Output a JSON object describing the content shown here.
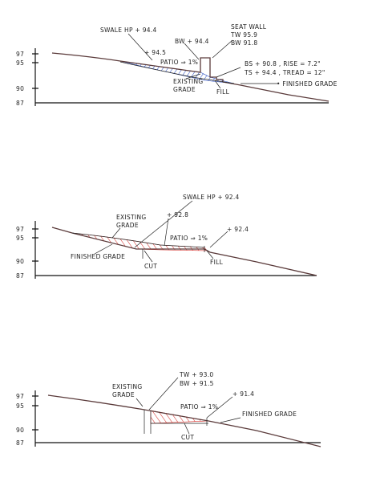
{
  "sections": [
    {
      "elevations": [
        "97",
        "95",
        "90",
        "87"
      ],
      "annotations": [
        "SWALE HP + 94.4",
        "SEAT WALL",
        "TW 95.9",
        "BW 91.8",
        "BW + 94.4",
        "+ 94.5",
        "PATIO ⇒ 1%",
        "EXISTING",
        "GRADE",
        "FILL",
        "BS + 90.8 , RISE = 7.2\"",
        "TS + 94.4 , TREAD = 12\"",
        "• FINISHED GRADE"
      ]
    },
    {
      "elevations": [
        "97",
        "95",
        "90",
        "87"
      ],
      "annotations": [
        "SWALE HP + 92.4",
        "EXISTING",
        "GRADE",
        "+ 92.8",
        "+ 92.4",
        "PATIO ⇒ 1%",
        "FINISHED GRADE",
        "CUT",
        "FILL"
      ]
    },
    {
      "elevations": [
        "97",
        "95",
        "90",
        "87"
      ],
      "annotations": [
        "TW + 93.0",
        "BW + 91.5",
        "EXISTING",
        "GRADE",
        "PATIO ⇒ 1%",
        "+ 91.4",
        "FINISHED GRADE",
        "CUT"
      ]
    }
  ]
}
